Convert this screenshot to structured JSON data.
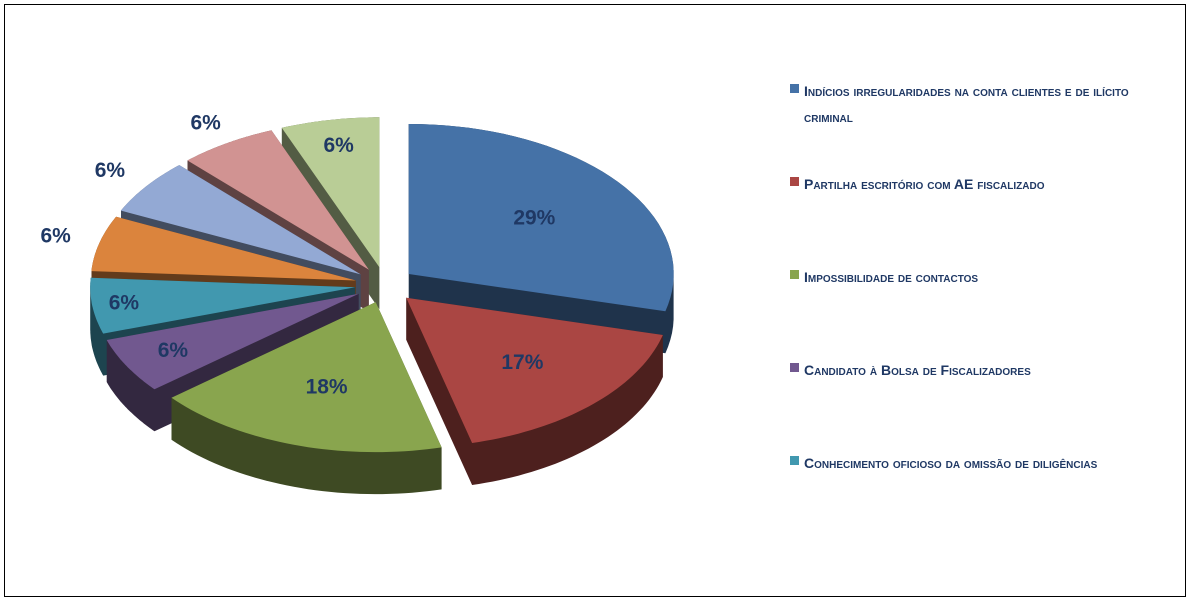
{
  "chart_data": {
    "type": "pie",
    "categories": [
      "Indícios irregularidades na conta clientes e de ilícito criminal",
      "Partilha escritório com AE fiscalizado",
      "Impossibilidade de contactos",
      "Candidato à Bolsa de Fiscalizadores",
      "Conhecimento oficioso da omissão de diligências",
      null,
      null,
      null,
      null
    ],
    "values": [
      29,
      17,
      18,
      6,
      6,
      6,
      6,
      6,
      6
    ],
    "value_labels": [
      "29%",
      "17%",
      "18%",
      "6%",
      "6%",
      "6%",
      "6%",
      "6%",
      "6%"
    ],
    "colors": [
      "#4572a7",
      "#aa4643",
      "#89a54e",
      "#71588f",
      "#4198af",
      "#db843d",
      "#93a9d4",
      "#d19392",
      "#b9cd96"
    ],
    "legend": "right"
  }
}
